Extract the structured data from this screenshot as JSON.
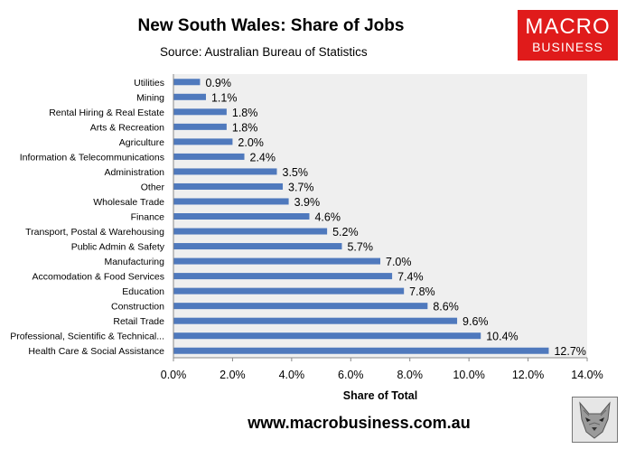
{
  "header": {
    "title": "New South Wales: Share of Jobs",
    "subtitle": "Source: Australian Bureau of Statistics"
  },
  "logo": {
    "line1": "MACRO",
    "line2": "BUSINESS",
    "color": "#e01b1b"
  },
  "footer": {
    "url": "www.macrobusiness.com.au"
  },
  "chart_data": {
    "type": "bar",
    "orientation": "horizontal",
    "categories": [
      "Utilities",
      "Mining",
      "Rental Hiring & Real Estate",
      "Arts & Recreation",
      "Agriculture",
      "Information & Telecommunications",
      "Administration",
      "Other",
      "Wholesale Trade",
      "Finance",
      "Transport, Postal & Warehousing",
      "Public Admin & Safety",
      "Manufacturing",
      "Accomodation & Food Services",
      "Education",
      "Construction",
      "Retail Trade",
      "Professional, Scientific & Technical...",
      "Health Care & Social Assistance"
    ],
    "values": [
      0.9,
      1.1,
      1.8,
      1.8,
      2.0,
      2.4,
      3.5,
      3.7,
      3.9,
      4.6,
      5.2,
      5.7,
      7.0,
      7.4,
      7.8,
      8.6,
      9.6,
      10.4,
      12.7
    ],
    "value_labels": [
      "0.9%",
      "1.1%",
      "1.8%",
      "1.8%",
      "2.0%",
      "2.4%",
      "3.5%",
      "3.7%",
      "3.9%",
      "4.6%",
      "5.2%",
      "5.7%",
      "7.0%",
      "7.4%",
      "7.8%",
      "8.6%",
      "9.6%",
      "10.4%",
      "12.7%"
    ],
    "xlabel": "Share of Total",
    "ylabel": "",
    "xlim": [
      0,
      14
    ],
    "xticks": [
      "0.0%",
      "2.0%",
      "4.0%",
      "6.0%",
      "8.0%",
      "10.0%",
      "12.0%",
      "14.0%"
    ],
    "grid": false,
    "bar_color": "#4f79bd",
    "plot_background": "#efefef"
  }
}
